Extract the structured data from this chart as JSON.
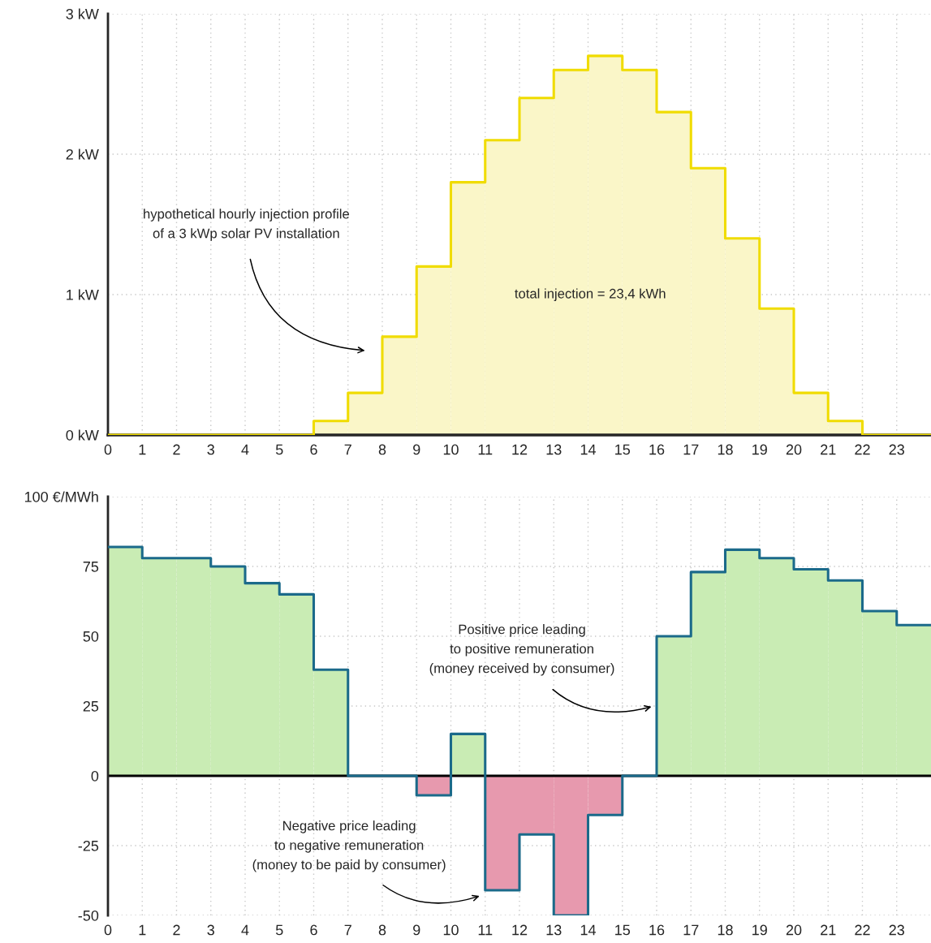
{
  "chart_data": [
    {
      "type": "histogram",
      "bins": [
        0,
        1,
        2,
        3,
        4,
        5,
        6,
        7,
        8,
        9,
        10,
        11,
        12,
        13,
        14,
        15,
        16,
        17,
        18,
        19,
        20,
        21,
        22,
        23,
        24
      ],
      "values": [
        0,
        0,
        0,
        0,
        0,
        0,
        0.1,
        0.3,
        0.7,
        1.2,
        1.8,
        2.1,
        2.4,
        2.6,
        2.7,
        2.6,
        2.3,
        1.9,
        1.4,
        0.9,
        0.3,
        0.1,
        0,
        0
      ],
      "colors": [
        "#faf6c8",
        "#faf6c8",
        "#faf6c8",
        "#faf6c8",
        "#faf6c8",
        "#faf6c8",
        "#faf6c8",
        "#faf6c8",
        "#faf6c8",
        "#faf6c8",
        "#faf6c8",
        "#faf6c8",
        "#faf6c8",
        "#faf6c8",
        "#faf6c8",
        "#faf6c8",
        "#faf6c8",
        "#faf6c8",
        "#faf6c8",
        "#faf6c8",
        "#faf6c8",
        "#faf6c8",
        "#faf6c8",
        "#faf6c8"
      ],
      "series": [
        {
          "type": "step",
          "color": "#f0dc00",
          "x": [
            0,
            1,
            2,
            3,
            4,
            5,
            6,
            7,
            8,
            9,
            10,
            11,
            12,
            13,
            14,
            15,
            16,
            17,
            18,
            19,
            20,
            21,
            22,
            23,
            24
          ],
          "values": [
            0,
            0,
            0,
            0,
            0,
            0,
            0.1,
            0.3,
            0.7,
            1.2,
            1.8,
            2.1,
            2.4,
            2.6,
            2.7,
            2.6,
            2.3,
            1.9,
            1.4,
            0.9,
            0.3,
            0.1,
            0,
            0,
            0
          ]
        }
      ],
      "xlim": [
        0,
        24
      ],
      "xticks": [
        0,
        1,
        2,
        3,
        4,
        5,
        6,
        7,
        8,
        9,
        10,
        11,
        12,
        13,
        14,
        15,
        16,
        17,
        18,
        19,
        20,
        21,
        22,
        23
      ],
      "ylim": [
        0,
        3
      ],
      "yticks": [
        {
          "value": 0,
          "label": "0 kW"
        },
        {
          "value": 1,
          "label": "1 kW"
        },
        {
          "value": 2,
          "label": "2 kW"
        },
        {
          "value": 3,
          "label": "3 kW"
        }
      ],
      "grid": true,
      "annotations": [
        "hypothetical hourly injection profile\nof a 3 kWp solar PV installation",
        "total injection = 23,4 kWh"
      ]
    },
    {
      "type": "histogram",
      "bins": [
        0,
        1,
        2,
        3,
        4,
        5,
        6,
        7,
        8,
        9,
        10,
        11,
        12,
        13,
        14,
        15,
        16,
        17,
        18,
        19,
        20,
        21,
        22,
        23,
        24
      ],
      "values": [
        82,
        78,
        78,
        75,
        69,
        65,
        38,
        0,
        0,
        -7,
        15,
        -41,
        -21,
        -50,
        -14,
        0,
        50,
        73,
        81,
        78,
        74,
        70,
        59,
        54
      ],
      "colors": [
        "#c9ecb4",
        "#c9ecb4",
        "#c9ecb4",
        "#c9ecb4",
        "#c9ecb4",
        "#c9ecb4",
        "#c9ecb4",
        "#c9ecb4",
        "#c9ecb4",
        "#e799ae",
        "#c9ecb4",
        "#e799ae",
        "#e799ae",
        "#e799ae",
        "#e799ae",
        "#c9ecb4",
        "#c9ecb4",
        "#c9ecb4",
        "#c9ecb4",
        "#c9ecb4",
        "#c9ecb4",
        "#c9ecb4",
        "#c9ecb4",
        "#c9ecb4"
      ],
      "series": [
        {
          "type": "step",
          "color": "#1b6a8a",
          "x": [
            0,
            1,
            2,
            3,
            4,
            5,
            6,
            7,
            8,
            9,
            10,
            11,
            12,
            13,
            14,
            15,
            16,
            17,
            18,
            19,
            20,
            21,
            22,
            23,
            24
          ],
          "values": [
            82,
            78,
            78,
            75,
            69,
            65,
            38,
            0,
            0,
            -7,
            15,
            -41,
            -21,
            -50,
            -14,
            0,
            50,
            73,
            81,
            78,
            74,
            70,
            59,
            54,
            54
          ]
        }
      ],
      "xlim": [
        0,
        24
      ],
      "xticks": [
        0,
        1,
        2,
        3,
        4,
        5,
        6,
        7,
        8,
        9,
        10,
        11,
        12,
        13,
        14,
        15,
        16,
        17,
        18,
        19,
        20,
        21,
        22,
        23
      ],
      "ylim": [
        -50,
        100
      ],
      "yticks": [
        -50,
        -25,
        0,
        25,
        50,
        75,
        {
          "value": 100,
          "label": "100 €/MWh"
        }
      ],
      "grid": true,
      "ref_lines": [
        {
          "axis": "y",
          "value": 0,
          "color": "#000000"
        }
      ],
      "annotations": [
        "Positive price leading\nto positive remuneration\n(money received by consumer)",
        "Negative price leading\nto negative remuneration\n(money to be paid by consumer)"
      ]
    }
  ]
}
